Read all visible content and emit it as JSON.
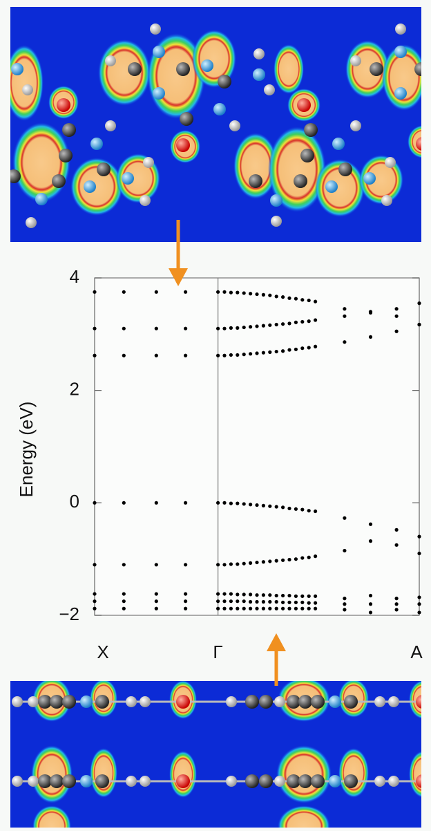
{
  "chart_data": {
    "type": "scatter",
    "ylabel": "Energy (eV)",
    "xlim": [
      0,
      1
    ],
    "xticks": [
      {
        "value": 0,
        "label": "X"
      },
      {
        "value": 0.38,
        "label": "Γ"
      },
      {
        "value": 1,
        "label": "A"
      }
    ],
    "ylim": [
      -2,
      4
    ],
    "yticks": [
      {
        "value": -2,
        "label": "−2"
      },
      0,
      2,
      4
    ],
    "color": "#000000",
    "x": [
      0,
      0.09,
      0.19,
      0.28,
      0.38,
      0.4,
      0.42,
      0.44,
      0.46,
      0.48,
      0.5,
      0.52,
      0.54,
      0.56,
      0.58,
      0.6,
      0.62,
      0.64,
      0.66,
      0.68,
      0.77,
      0.85,
      0.93,
      1.0
    ],
    "series": [
      {
        "values": [
          3.75,
          3.75,
          3.75,
          3.75,
          3.75,
          3.75,
          3.74,
          3.74,
          3.73,
          3.72,
          3.71,
          3.7,
          3.69,
          3.67,
          3.66,
          3.64,
          3.63,
          3.61,
          3.6,
          3.58,
          3.45,
          3.4,
          3.45,
          3.55
        ]
      },
      {
        "values": [
          3.1,
          3.1,
          3.1,
          3.1,
          3.1,
          3.1,
          3.11,
          3.11,
          3.12,
          3.13,
          3.14,
          3.15,
          3.16,
          3.17,
          3.18,
          3.19,
          3.21,
          3.22,
          3.23,
          3.25,
          3.32,
          3.38,
          3.32,
          3.17
        ]
      },
      {
        "values": [
          2.62,
          2.62,
          2.62,
          2.62,
          2.62,
          2.62,
          2.63,
          2.63,
          2.64,
          2.65,
          2.66,
          2.67,
          2.68,
          2.69,
          2.7,
          2.72,
          2.73,
          2.75,
          2.76,
          2.78,
          2.86,
          2.95,
          3.05,
          3.17
        ]
      },
      {
        "values": [
          0,
          0,
          0,
          0,
          0,
          0,
          -0.01,
          -0.01,
          -0.02,
          -0.03,
          -0.04,
          -0.05,
          -0.06,
          -0.07,
          -0.08,
          -0.1,
          -0.11,
          -0.12,
          -0.14,
          -0.15,
          -0.27,
          -0.38,
          -0.48,
          -0.6
        ]
      },
      {
        "values": [
          -1.1,
          -1.1,
          -1.1,
          -1.1,
          -1.1,
          -1.1,
          -1.09,
          -1.09,
          -1.08,
          -1.07,
          -1.06,
          -1.05,
          -1.04,
          -1.03,
          -1.02,
          -1.01,
          -1.0,
          -0.98,
          -0.97,
          -0.95,
          -0.85,
          -0.68,
          -0.75,
          -0.9
        ]
      },
      {
        "values": [
          -1.62,
          -1.62,
          -1.62,
          -1.62,
          -1.62,
          -1.62,
          -1.62,
          -1.63,
          -1.63,
          -1.63,
          -1.64,
          -1.64,
          -1.64,
          -1.65,
          -1.65,
          -1.65,
          -1.66,
          -1.66,
          -1.66,
          -1.66,
          -1.7,
          -1.65,
          -1.7,
          -1.68
        ]
      },
      {
        "values": [
          -1.75,
          -1.75,
          -1.75,
          -1.75,
          -1.75,
          -1.75,
          -1.75,
          -1.75,
          -1.75,
          -1.76,
          -1.76,
          -1.76,
          -1.76,
          -1.76,
          -1.77,
          -1.77,
          -1.77,
          -1.77,
          -1.78,
          -1.78,
          -1.8,
          -1.8,
          -1.8,
          -1.8
        ]
      },
      {
        "values": [
          -1.88,
          -1.88,
          -1.88,
          -1.88,
          -1.88,
          -1.88,
          -1.88,
          -1.88,
          -1.88,
          -1.88,
          -1.88,
          -1.88,
          -1.88,
          -1.88,
          -1.88,
          -1.88,
          -1.88,
          -1.88,
          -1.88,
          -1.88,
          -1.9,
          -1.95,
          -1.9,
          -1.95
        ]
      }
    ]
  }
}
